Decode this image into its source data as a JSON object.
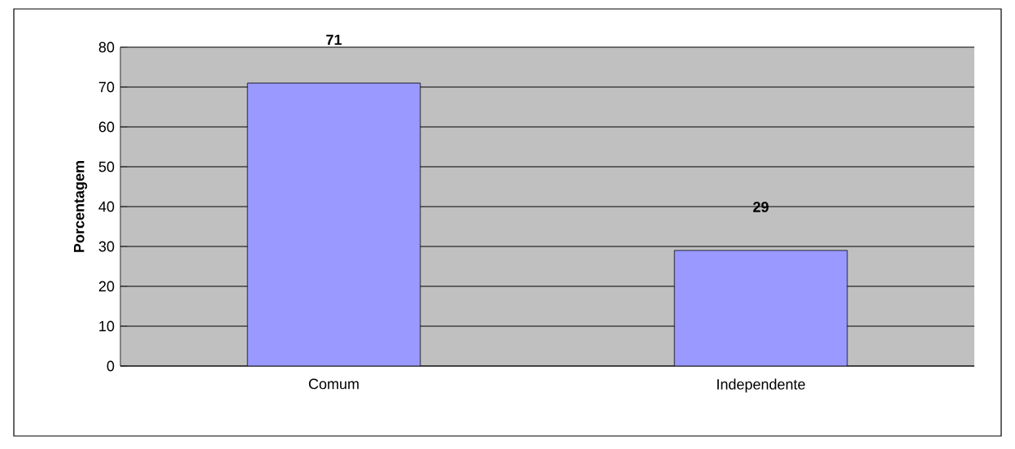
{
  "chart_data": {
    "type": "bar",
    "ylabel": "Porcentagem",
    "categories": [
      "Comum",
      "Independente"
    ],
    "values": [
      71,
      29
    ],
    "color": "#9999ff",
    "ylim": [
      0,
      80
    ],
    "yticks": [
      0,
      10,
      20,
      30,
      40,
      50,
      60,
      70,
      80
    ],
    "grid": "y",
    "data_labels": true
  }
}
